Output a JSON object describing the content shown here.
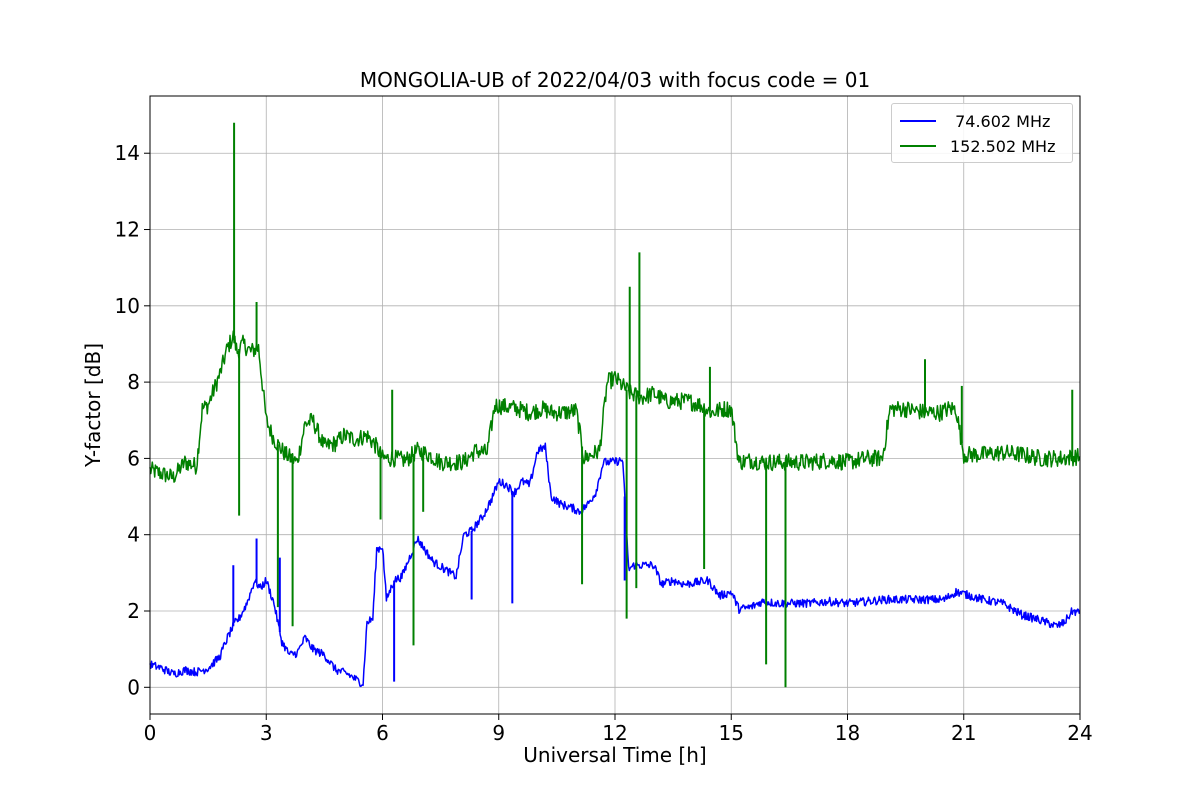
{
  "chart_data": {
    "type": "line",
    "title": "MONGOLIA-UB of 2022/04/03 with focus code = 01",
    "xlabel": "Universal Time [h]",
    "ylabel": "Y-factor [dB]",
    "xlim": [
      0,
      24
    ],
    "ylim": [
      -0.7,
      15.5
    ],
    "x_ticks": [
      0,
      3,
      6,
      9,
      12,
      15,
      18,
      21,
      24
    ],
    "y_ticks": [
      0,
      2,
      4,
      6,
      8,
      10,
      12,
      14
    ],
    "grid": true,
    "legend_position": "top-right",
    "series": [
      {
        "name": " 74.602 MHz",
        "color": "#0000ff",
        "x": [
          0,
          0.3,
          0.6,
          0.9,
          1.2,
          1.5,
          1.8,
          2.0,
          2.2,
          2.3,
          2.5,
          2.7,
          2.85,
          3.0,
          3.2,
          3.4,
          3.6,
          3.8,
          4.0,
          4.2,
          4.5,
          4.8,
          5.1,
          5.4,
          5.5,
          5.6,
          5.75,
          5.85,
          6.0,
          6.1,
          6.3,
          6.5,
          6.7,
          6.9,
          7.1,
          7.3,
          7.6,
          7.9,
          8.1,
          8.3,
          8.6,
          8.8,
          9.0,
          9.2,
          9.4,
          9.6,
          9.8,
          10.0,
          10.2,
          10.35,
          10.6,
          10.9,
          11.1,
          11.3,
          11.5,
          11.7,
          11.9,
          12.2,
          12.35,
          12.5,
          12.8,
          13.0,
          13.2,
          13.5,
          13.8,
          14.1,
          14.4,
          14.7,
          15.0,
          15.2,
          15.5,
          15.8,
          16.2,
          16.6,
          17.0,
          17.5,
          18.0,
          18.5,
          19.0,
          19.5,
          20.0,
          20.5,
          20.8,
          21.0,
          21.5,
          22.0,
          22.5,
          23.0,
          23.4,
          23.6,
          23.8,
          24.0
        ],
        "y": [
          0.6,
          0.5,
          0.35,
          0.45,
          0.4,
          0.5,
          0.8,
          1.3,
          1.7,
          1.8,
          2.2,
          2.8,
          2.6,
          2.8,
          2.2,
          1.2,
          0.85,
          0.9,
          1.3,
          1.0,
          0.85,
          0.45,
          0.35,
          0.15,
          0.1,
          1.7,
          1.8,
          3.6,
          3.7,
          2.3,
          2.8,
          2.9,
          3.4,
          3.9,
          3.6,
          3.3,
          3.1,
          2.9,
          4.0,
          4.1,
          4.5,
          4.9,
          5.4,
          5.3,
          5.1,
          5.4,
          5.3,
          6.2,
          6.3,
          5.0,
          4.8,
          4.7,
          4.6,
          4.8,
          5.1,
          5.9,
          5.9,
          5.95,
          3.1,
          3.2,
          3.2,
          3.2,
          2.7,
          2.8,
          2.7,
          2.75,
          2.8,
          2.4,
          2.5,
          2.05,
          2.1,
          2.25,
          2.2,
          2.2,
          2.2,
          2.25,
          2.2,
          2.25,
          2.3,
          2.3,
          2.3,
          2.3,
          2.5,
          2.45,
          2.3,
          2.2,
          1.9,
          1.75,
          1.6,
          1.7,
          2.0,
          1.95
        ]
      },
      {
        "name": "152.502 MHz",
        "color": "#008000",
        "x": [
          0,
          0.3,
          0.6,
          0.9,
          1.2,
          1.35,
          1.5,
          1.8,
          2.0,
          2.15,
          2.25,
          2.4,
          2.6,
          2.8,
          3.0,
          3.2,
          3.5,
          3.8,
          4.0,
          4.2,
          4.5,
          4.8,
          5.0,
          5.3,
          5.6,
          5.85,
          6.0,
          6.3,
          6.6,
          6.9,
          7.2,
          7.5,
          7.8,
          8.1,
          8.4,
          8.7,
          8.9,
          9.2,
          9.5,
          9.8,
          10.1,
          10.4,
          10.7,
          11.0,
          11.2,
          11.4,
          11.6,
          11.8,
          12.0,
          12.2,
          12.4,
          12.7,
          13.0,
          13.3,
          13.6,
          13.9,
          14.2,
          14.5,
          14.8,
          15.0,
          15.2,
          15.5,
          15.8,
          16.2,
          16.6,
          17.0,
          17.5,
          18.0,
          18.5,
          18.9,
          19.1,
          19.5,
          20.0,
          20.4,
          20.6,
          20.8,
          21.0,
          21.5,
          22.0,
          22.5,
          23.0,
          23.5,
          24.0
        ],
        "y": [
          5.7,
          5.6,
          5.5,
          5.9,
          5.8,
          7.3,
          7.4,
          8.2,
          8.9,
          9.2,
          8.8,
          9.0,
          8.8,
          8.9,
          7.0,
          6.5,
          6.1,
          5.9,
          6.9,
          7.0,
          6.3,
          6.4,
          6.6,
          6.5,
          6.6,
          6.3,
          6.0,
          6.0,
          5.95,
          6.2,
          6.1,
          5.9,
          5.9,
          5.9,
          6.2,
          6.15,
          7.4,
          7.35,
          7.3,
          7.2,
          7.3,
          7.2,
          7.2,
          7.25,
          6.0,
          6.1,
          6.2,
          8.0,
          8.1,
          7.9,
          7.7,
          7.6,
          7.7,
          7.5,
          7.5,
          7.5,
          7.4,
          7.2,
          7.3,
          7.3,
          5.9,
          5.95,
          5.9,
          5.9,
          5.9,
          5.9,
          5.95,
          5.9,
          6.0,
          6.0,
          7.3,
          7.3,
          7.2,
          7.2,
          7.3,
          7.3,
          6.1,
          6.1,
          6.15,
          6.1,
          6.0,
          6.0,
          6.05
        ]
      }
    ],
    "spikes": [
      {
        "series": 1,
        "x": 2.17,
        "y": 14.8
      },
      {
        "series": 1,
        "x": 2.3,
        "y": 4.5
      },
      {
        "series": 1,
        "x": 2.75,
        "y": 10.1
      },
      {
        "series": 1,
        "x": 3.3,
        "y": 2.1
      },
      {
        "series": 1,
        "x": 3.68,
        "y": 1.6
      },
      {
        "series": 1,
        "x": 5.95,
        "y": 4.4
      },
      {
        "series": 1,
        "x": 6.25,
        "y": 7.8
      },
      {
        "series": 1,
        "x": 6.8,
        "y": 1.1
      },
      {
        "series": 1,
        "x": 7.05,
        "y": 4.6
      },
      {
        "series": 1,
        "x": 11.15,
        "y": 2.7
      },
      {
        "series": 1,
        "x": 12.3,
        "y": 1.8
      },
      {
        "series": 1,
        "x": 12.38,
        "y": 10.5
      },
      {
        "series": 1,
        "x": 12.55,
        "y": 2.6
      },
      {
        "series": 1,
        "x": 12.63,
        "y": 11.4
      },
      {
        "series": 1,
        "x": 14.3,
        "y": 3.1
      },
      {
        "series": 1,
        "x": 14.45,
        "y": 8.4
      },
      {
        "series": 1,
        "x": 15.9,
        "y": 0.6
      },
      {
        "series": 1,
        "x": 16.4,
        "y": 0.0
      },
      {
        "series": 1,
        "x": 20.0,
        "y": 8.6
      },
      {
        "series": 1,
        "x": 20.95,
        "y": 7.9
      },
      {
        "series": 1,
        "x": 23.8,
        "y": 7.8
      },
      {
        "series": 0,
        "x": 2.15,
        "y": 3.2
      },
      {
        "series": 0,
        "x": 2.75,
        "y": 3.9
      },
      {
        "series": 0,
        "x": 3.35,
        "y": 3.4
      },
      {
        "series": 0,
        "x": 6.3,
        "y": 0.15
      },
      {
        "series": 0,
        "x": 8.3,
        "y": 2.3
      },
      {
        "series": 0,
        "x": 9.35,
        "y": 2.2
      },
      {
        "series": 0,
        "x": 12.25,
        "y": 2.8
      }
    ]
  }
}
